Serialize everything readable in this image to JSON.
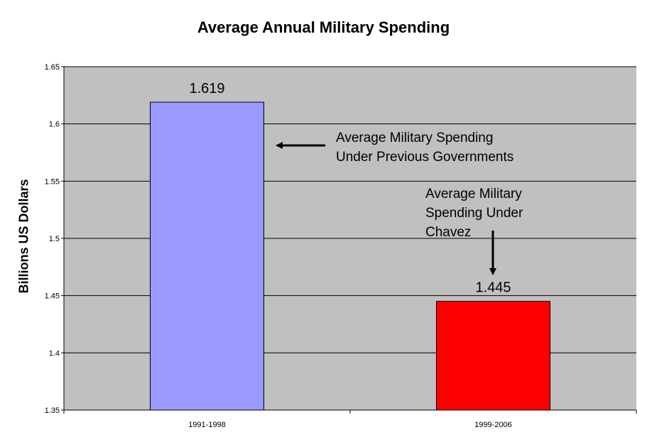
{
  "chart_data": {
    "type": "bar",
    "title": "Average Annual Military Spending",
    "xlabel": "",
    "ylabel": "Billions US Dollars",
    "categories": [
      "1991-1998",
      "1999-2006"
    ],
    "values": [
      1.619,
      1.445
    ],
    "data_labels": [
      "1.619",
      "1.445"
    ],
    "bar_colors": [
      "#9999ff",
      "#ff0000"
    ],
    "ylim": [
      1.35,
      1.65
    ],
    "yticks": [
      1.35,
      1.4,
      1.45,
      1.5,
      1.55,
      1.6,
      1.65
    ],
    "ytick_labels": [
      "1.35",
      "1.4",
      "1.45",
      "1.5",
      "1.55",
      "1.6",
      "1.65"
    ],
    "grid": true,
    "plot_background": "#c0c0c0",
    "legend": "none",
    "annotations": [
      {
        "lines": [
          "Average Military Spending",
          "Under Previous Governments"
        ],
        "arrow": "left",
        "points_to": "1991-1998"
      },
      {
        "lines": [
          "Average Military",
          "Spending Under",
          "Chavez"
        ],
        "arrow": "down",
        "points_to": "1999-2006"
      }
    ]
  }
}
